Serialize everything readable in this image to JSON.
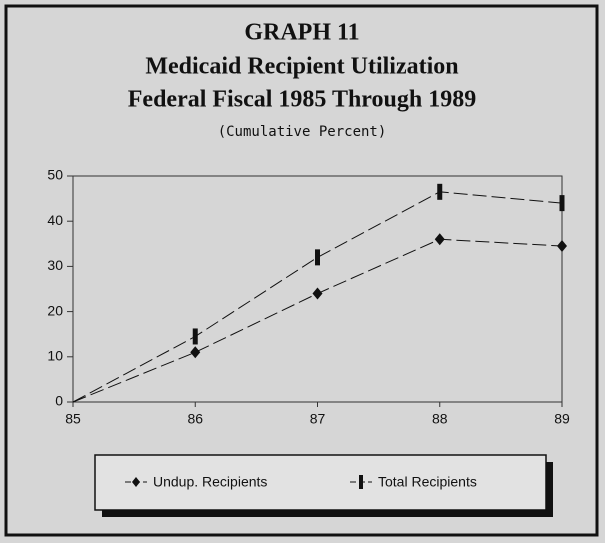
{
  "chart_data": {
    "type": "line",
    "title": [
      "GRAPH 11",
      "Medicaid Recipient Utilization",
      "Federal Fiscal 1985 Through 1989"
    ],
    "subtitle": "(Cumulative Percent)",
    "x": [
      85,
      86,
      87,
      88,
      89
    ],
    "series": [
      {
        "name": "Undup. Recipients",
        "color": "#111111",
        "values": [
          0,
          11,
          24,
          36,
          34.5
        ]
      },
      {
        "name": "Total Recipients",
        "color": "#111111",
        "values": [
          0,
          14.5,
          32,
          46.5,
          44
        ]
      }
    ],
    "xlim": [
      85,
      89
    ],
    "xticks": [
      85,
      86,
      87,
      88,
      89
    ],
    "ylim": [
      0,
      50
    ],
    "yticks": [
      0,
      10,
      20,
      30,
      40,
      50
    ],
    "grid": false,
    "legend": "bottom"
  }
}
